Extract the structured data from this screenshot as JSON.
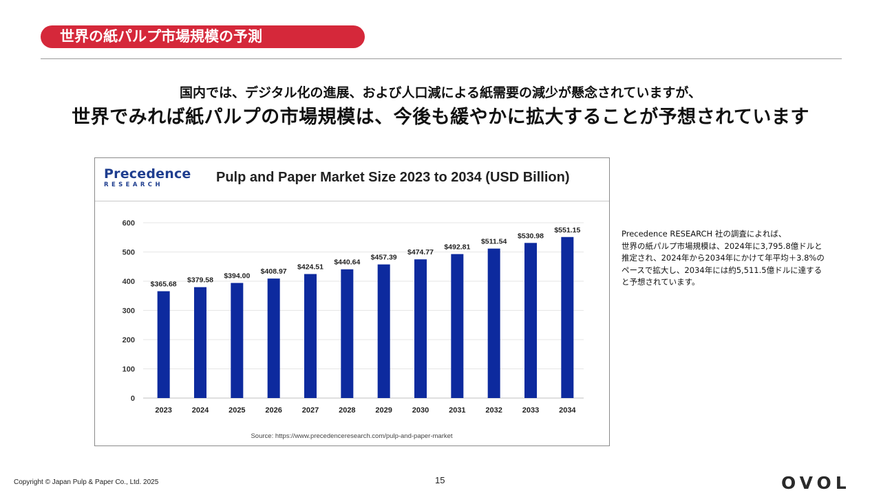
{
  "slide": {
    "title": "世界の紙パルプ市場規模の予測",
    "headline_line1": "国内では、デジタル化の進展、および人口減による紙需要の減少が懸念されていますが、",
    "headline_line2": "世界でみれば紙パルプの市場規模は、今後も緩やかに拡大することが予想されています",
    "note_lines": [
      "Precedence RESEARCH 社の調査によれば、",
      "世界の紙パルプ市場規模は、2024年に3,795.8億ドルと",
      "推定され、2024年から2034年にかけて年平均＋3.8%の",
      "ペースで拡大し、2034年には約5,511.5億ドルに達する",
      "と予想されています。"
    ],
    "copyright": "Copyright © Japan Pulp & Paper Co., Ltd. 2025",
    "page_number": "15",
    "brand": "OVOL",
    "accent_color": "#d5283a"
  },
  "logo": {
    "main": "Precedence",
    "sub": "RESEARCH"
  },
  "chart_data": {
    "type": "bar",
    "title": "Pulp and Paper Market Size 2023 to 2034 (USD Billion)",
    "categories": [
      "2023",
      "2024",
      "2025",
      "2026",
      "2027",
      "2028",
      "2029",
      "2030",
      "2031",
      "2032",
      "2033",
      "2034"
    ],
    "values": [
      365.68,
      379.58,
      394.0,
      408.97,
      424.51,
      440.64,
      457.39,
      474.77,
      492.81,
      511.54,
      530.98,
      551.15
    ],
    "value_labels": [
      "$365.68",
      "$379.58",
      "$394.00",
      "$408.97",
      "$424.51",
      "$440.64",
      "$457.39",
      "$474.77",
      "$492.81",
      "$511.54",
      "$530.98",
      "$551.15"
    ],
    "yticks": [
      "0",
      "100",
      "200",
      "300",
      "400",
      "500",
      "600"
    ],
    "ylim": [
      0,
      600
    ],
    "bar_color": "#0d2a9e",
    "grid": true,
    "source": "Source: https://www.precedenceresearch.com/pulp-and-paper-market"
  }
}
